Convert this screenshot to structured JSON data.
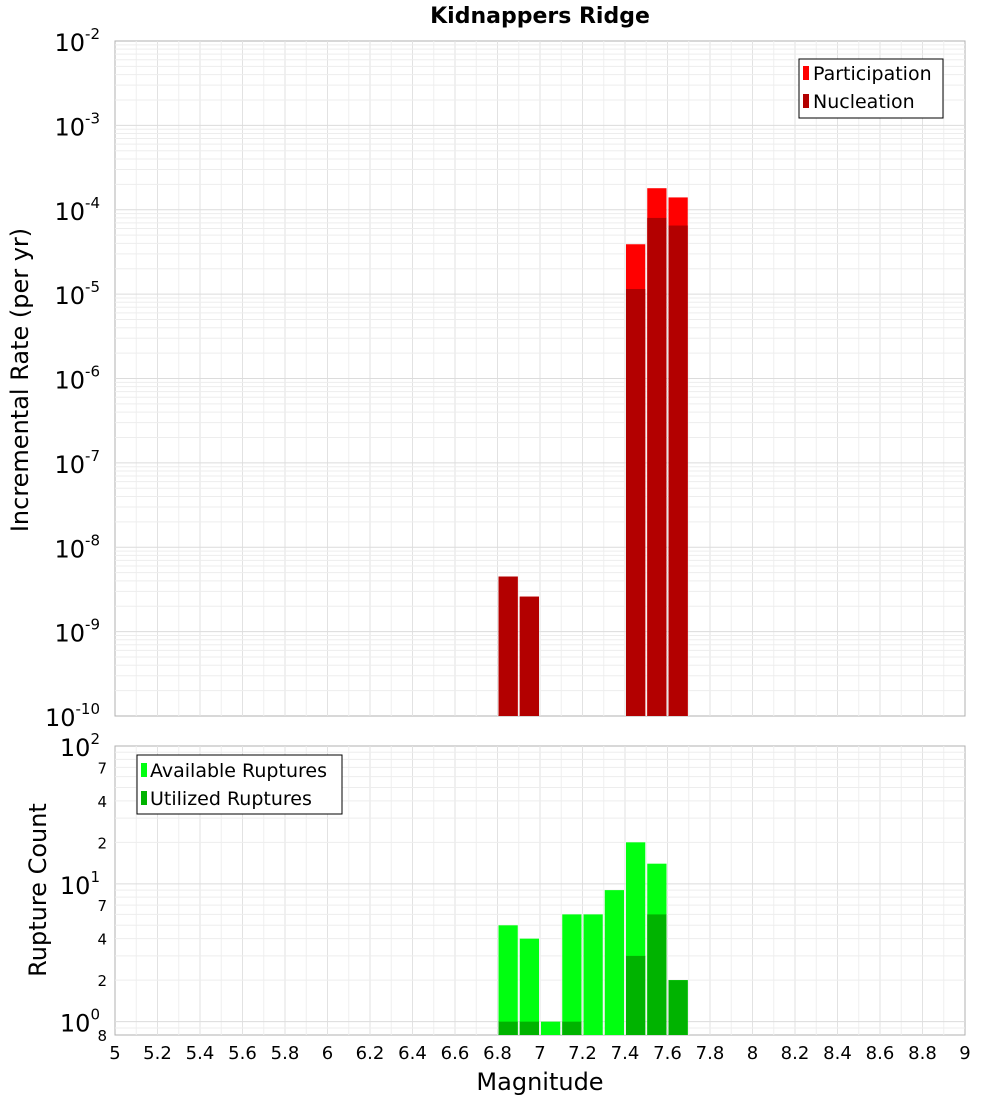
{
  "chart_data": {
    "type": "bar",
    "title": "Kidnappers Ridge",
    "xlabel": "Magnitude",
    "xlim": [
      5,
      9
    ],
    "x_ticks": [
      "5",
      "5.2",
      "5.4",
      "5.6",
      "5.8",
      "6",
      "6.2",
      "6.4",
      "6.6",
      "6.8",
      "7",
      "7.2",
      "7.4",
      "7.6",
      "7.8",
      "8",
      "8.2",
      "8.4",
      "8.6",
      "8.8",
      "9"
    ],
    "bin_width": 0.1,
    "top_panel": {
      "ylabel": "Incremental Rate (per yr)",
      "yscale": "log",
      "ylim": [
        1e-10,
        0.01
      ],
      "y_tick_exponents": [
        "-2",
        "-3",
        "-4",
        "-5",
        "-6",
        "-7",
        "-8",
        "-9",
        "-10"
      ],
      "legend": {
        "position": "top-right",
        "entries": [
          {
            "name": "Participation",
            "color": "#ff0000"
          },
          {
            "name": "Nucleation",
            "color": "#b30000"
          }
        ]
      },
      "series": [
        {
          "name": "Participation",
          "color": "#ff0000",
          "x": [
            6.85,
            6.95,
            7.45,
            7.55,
            7.65
          ],
          "values": [
            4.5e-09,
            2.6e-09,
            3.9e-05,
            0.00018,
            0.00014
          ]
        },
        {
          "name": "Nucleation",
          "color": "#b30000",
          "x": [
            6.85,
            6.95,
            7.45,
            7.55,
            7.65
          ],
          "values": [
            4.5e-09,
            2.6e-09,
            1.15e-05,
            8e-05,
            6.5e-05
          ]
        }
      ]
    },
    "bottom_panel": {
      "ylabel": "Rupture Count",
      "yscale": "log",
      "ylim": [
        0.8,
        100
      ],
      "decade_labels": [
        {
          "base": "10",
          "exp": "2",
          "value": 100
        },
        {
          "base": "10",
          "exp": "1",
          "value": 10
        },
        {
          "base": "10",
          "exp": "0",
          "value": 1
        }
      ],
      "minor_labels": [
        {
          "text": "7",
          "value": 70
        },
        {
          "text": "4",
          "value": 40
        },
        {
          "text": "2",
          "value": 20
        },
        {
          "text": "7",
          "value": 7
        },
        {
          "text": "4",
          "value": 4
        },
        {
          "text": "2",
          "value": 2
        },
        {
          "text": "8",
          "value": 0.8
        }
      ],
      "legend": {
        "position": "top-left",
        "entries": [
          {
            "name": "Available Ruptures",
            "color": "#00ff10"
          },
          {
            "name": "Utilized Ruptures",
            "color": "#00b300"
          }
        ]
      },
      "series": [
        {
          "name": "Available Ruptures",
          "color": "#00ff10",
          "x": [
            6.85,
            6.95,
            7.05,
            7.15,
            7.25,
            7.35,
            7.45,
            7.55,
            7.65
          ],
          "values": [
            5,
            4,
            1,
            6,
            6,
            9,
            20,
            14,
            2
          ]
        },
        {
          "name": "Utilized Ruptures",
          "color": "#00b300",
          "x": [
            6.85,
            6.95,
            7.15,
            7.45,
            7.55,
            7.65
          ],
          "values": [
            1,
            1,
            1,
            3,
            6,
            2
          ]
        }
      ]
    }
  }
}
